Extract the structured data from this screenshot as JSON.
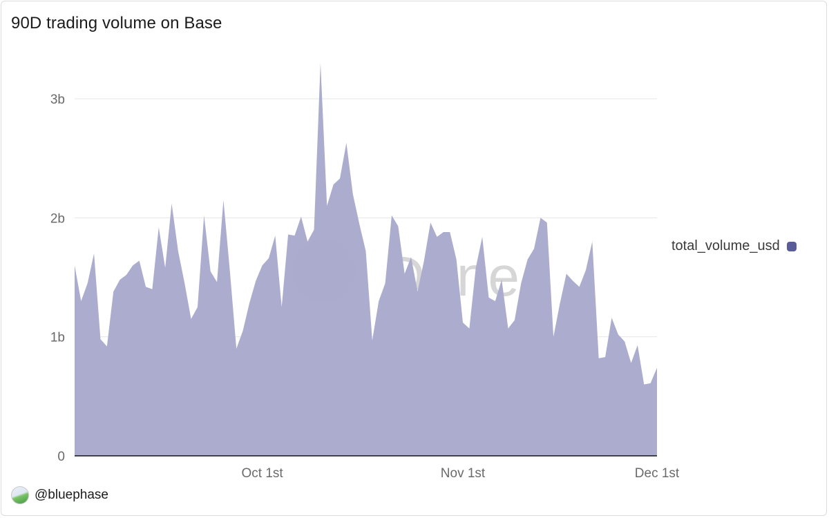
{
  "header": {
    "title": "90D trading volume on Base"
  },
  "author": {
    "handle": "@bluephase",
    "avatar_icon": "globe-avatar-icon"
  },
  "watermark": {
    "text": "Dune"
  },
  "colors": {
    "area_fill": "#a9aacd",
    "axis": "#111111",
    "grid": "#e6e6e6",
    "legend_swatch": "#5a5c99",
    "watermark": "#8a8a8a"
  },
  "chart_data": {
    "type": "area",
    "title": "90D trading volume on Base",
    "xlabel": "",
    "ylabel": "",
    "ylim": [
      0,
      3.3
    ],
    "y_unit": "billions USD",
    "y_ticks": [
      {
        "value": 0,
        "label": "0"
      },
      {
        "value": 1,
        "label": "1b"
      },
      {
        "value": 2,
        "label": "2b"
      },
      {
        "value": 3,
        "label": "3b"
      }
    ],
    "x_ticks": [
      {
        "index": 29,
        "label": "Oct 1st"
      },
      {
        "index": 60,
        "label": "Nov 1st"
      },
      {
        "index": 90,
        "label": "Dec 1st"
      }
    ],
    "legend": {
      "position": "right",
      "entries": [
        "total_volume_usd"
      ]
    },
    "series": [
      {
        "name": "total_volume_usd",
        "values": [
          1.6,
          1.3,
          1.45,
          1.7,
          0.98,
          0.92,
          1.38,
          1.48,
          1.52,
          1.6,
          1.64,
          1.42,
          1.4,
          1.92,
          1.58,
          2.12,
          1.72,
          1.45,
          1.15,
          1.25,
          2.02,
          1.55,
          1.46,
          2.15,
          1.55,
          0.9,
          1.05,
          1.28,
          1.47,
          1.6,
          1.66,
          1.85,
          1.25,
          1.86,
          1.85,
          2.01,
          1.8,
          1.9,
          3.3,
          2.1,
          2.28,
          2.33,
          2.63,
          2.2,
          1.95,
          1.72,
          0.97,
          1.3,
          1.45,
          2.02,
          1.93,
          1.53,
          1.67,
          1.38,
          1.64,
          1.96,
          1.84,
          1.88,
          1.88,
          1.65,
          1.12,
          1.07,
          1.58,
          1.84,
          1.33,
          1.3,
          1.48,
          1.07,
          1.14,
          1.45,
          1.65,
          1.74,
          2.0,
          1.96,
          1.0,
          1.28,
          1.53,
          1.47,
          1.42,
          1.56,
          1.8,
          0.82,
          0.83,
          1.16,
          1.02,
          0.96,
          0.78,
          0.93,
          0.6,
          0.61,
          0.74
        ]
      }
    ]
  }
}
